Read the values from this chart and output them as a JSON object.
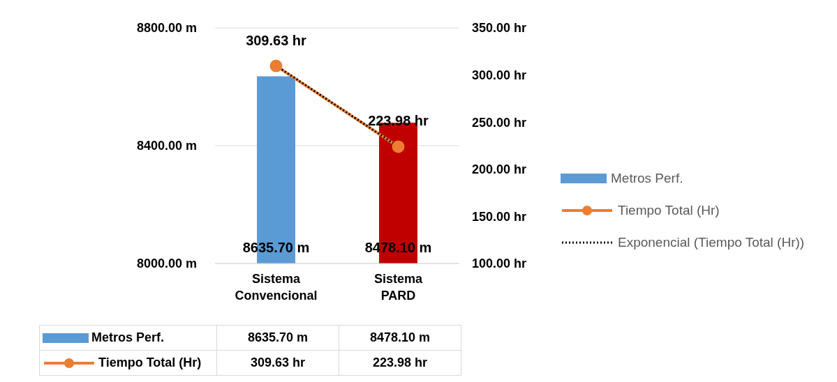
{
  "chart_data": {
    "type": "bar",
    "categories": [
      "Sistema Convencional",
      "Sistema PARD"
    ],
    "series": [
      {
        "name": "Metros Perf.",
        "color": "#5b9bd5",
        "colors": [
          "#5b9bd5",
          "#c00000"
        ],
        "values": [
          8635.7,
          8478.1
        ],
        "value_labels": [
          "8635.70 m",
          "8478.10 m"
        ]
      },
      {
        "name": "Tiempo Total (Hr)",
        "type": "line",
        "axis": "y2",
        "color": "#ed7d31",
        "marker": "circle",
        "values": [
          309.63,
          223.98
        ],
        "value_labels": [
          "309.63 hr",
          "223.98 hr"
        ]
      },
      {
        "name": "Exponencial (Tiempo Total (Hr))",
        "type": "line",
        "axis": "y2",
        "color": "#000000",
        "marker": "none",
        "line_style": "dotted",
        "values": [
          310,
          224
        ]
      }
    ],
    "ylim": [
      8000,
      8800
    ],
    "yticks": [
      {
        "value": 8000,
        "label": "8000.00 m"
      },
      {
        "value": 8400,
        "label": "8400.00 m"
      },
      {
        "value": 8800,
        "label": "8800.00 m"
      }
    ],
    "y2lim": [
      100,
      350
    ],
    "y2ticks": [
      {
        "value": 100,
        "label": "100.00 hr"
      },
      {
        "value": 150,
        "label": "150.00 hr"
      },
      {
        "value": 200,
        "label": "200.00 hr"
      },
      {
        "value": 250,
        "label": "250.00 hr"
      },
      {
        "value": 300,
        "label": "300.00 hr"
      },
      {
        "value": 350,
        "label": "350.00 hr"
      }
    ],
    "grid": "y",
    "legend": "right"
  }
}
